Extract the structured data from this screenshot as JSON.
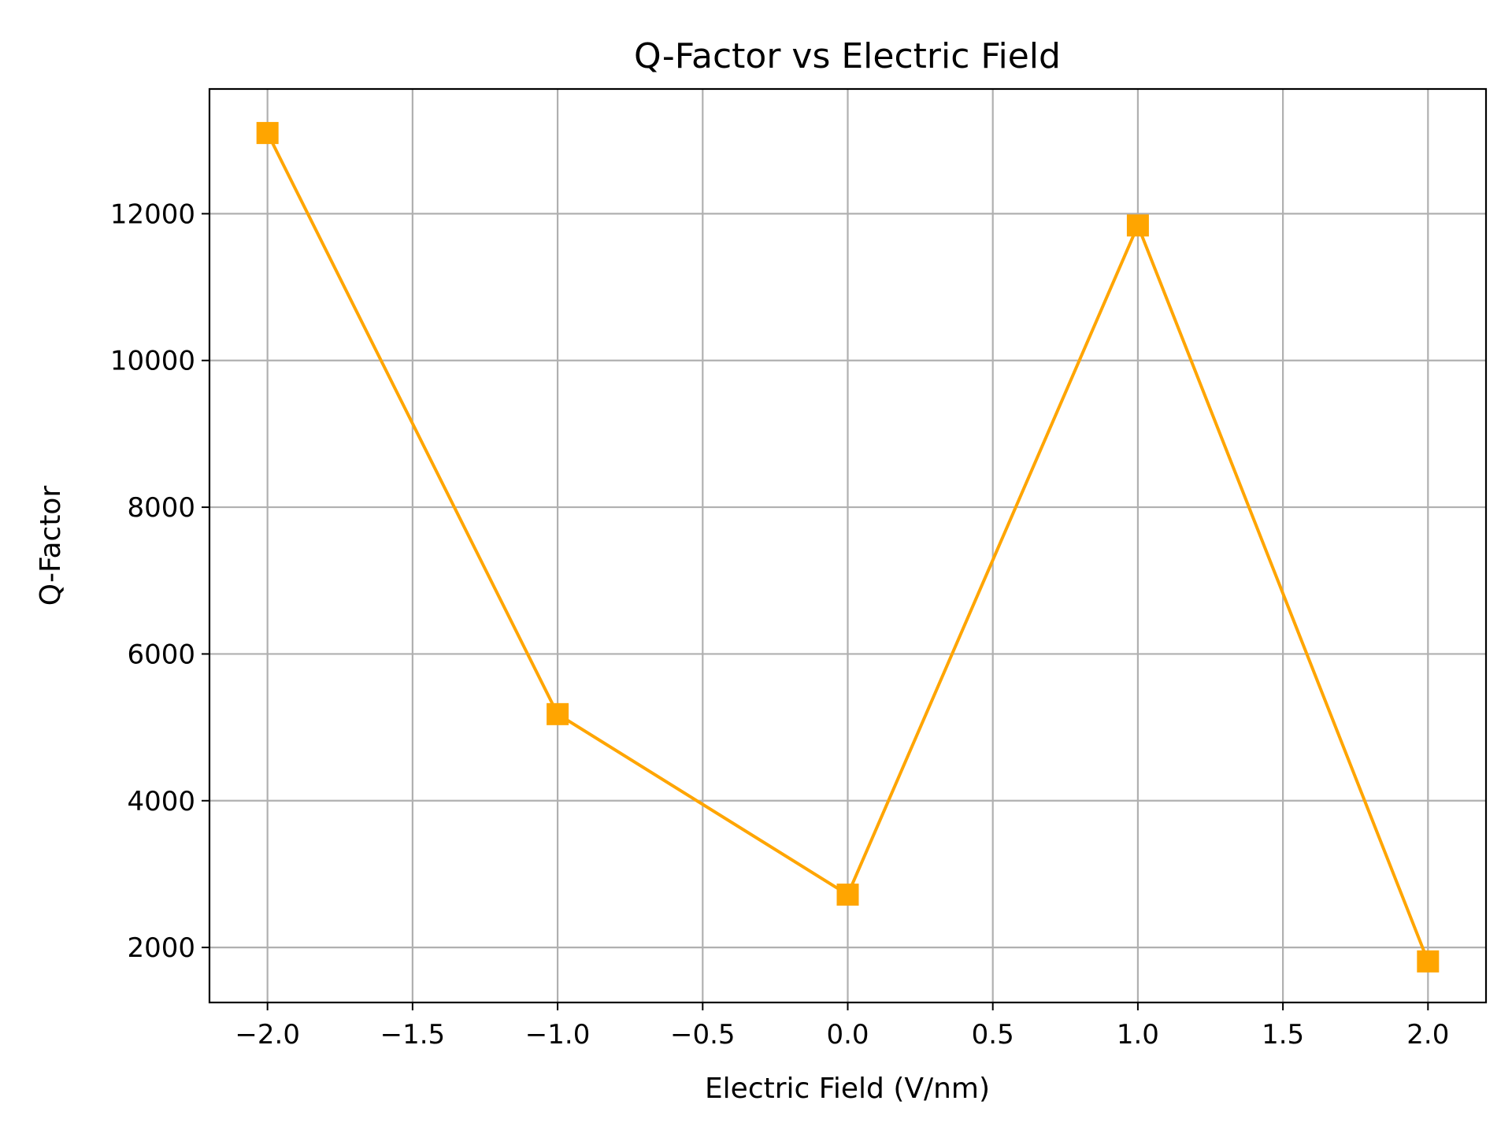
{
  "chart_data": {
    "type": "line",
    "title": "Q-Factor vs Electric Field",
    "xlabel": "Electric Field (V/nm)",
    "ylabel": "Q-Factor",
    "xlim": [
      -2.2,
      2.2
    ],
    "ylim": [
      1250,
      13700
    ],
    "grid": true,
    "x": [
      -2.0,
      -1.0,
      0.0,
      1.0,
      2.0
    ],
    "series": [
      {
        "values": [
          13100,
          5180,
          2720,
          11840,
          1810
        ],
        "color": "#FFA500",
        "marker": "square"
      }
    ],
    "xticks": [
      {
        "value": -2.0,
        "label": "−2.0"
      },
      {
        "value": -1.5,
        "label": "−1.5"
      },
      {
        "value": -1.0,
        "label": "−1.0"
      },
      {
        "value": -0.5,
        "label": "−0.5"
      },
      {
        "value": 0.0,
        "label": "0.0"
      },
      {
        "value": 0.5,
        "label": "0.5"
      },
      {
        "value": 1.0,
        "label": "1.0"
      },
      {
        "value": 1.5,
        "label": "1.5"
      },
      {
        "value": 2.0,
        "label": "2.0"
      }
    ],
    "yticks": [
      {
        "value": 2000,
        "label": "2000"
      },
      {
        "value": 4000,
        "label": "4000"
      },
      {
        "value": 6000,
        "label": "6000"
      },
      {
        "value": 8000,
        "label": "8000"
      },
      {
        "value": 10000,
        "label": "10000"
      },
      {
        "value": 12000,
        "label": "12000"
      }
    ]
  }
}
